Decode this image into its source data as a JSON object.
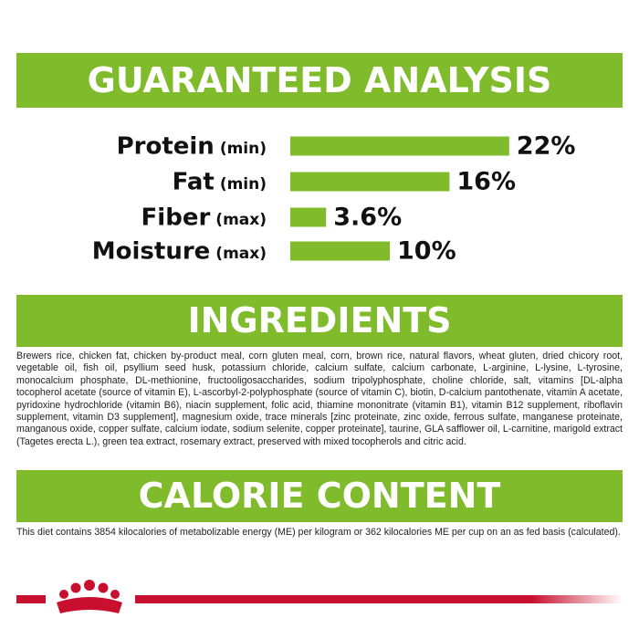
{
  "chart_data": {
    "type": "bar",
    "title": "GUARANTEED ANALYSIS",
    "categories": [
      "Protein",
      "Fat",
      "Fiber",
      "Moisture"
    ],
    "category_notes": [
      "(min)",
      "(min)",
      "(max)",
      "(max)"
    ],
    "values": [
      22,
      16,
      3.6,
      10
    ],
    "value_labels": [
      "22%",
      "16%",
      "3.6%",
      "10%"
    ],
    "color": "#7fbb2a"
  },
  "sections": {
    "ingredients": {
      "title": "INGREDIENTS",
      "text": "Brewers rice, chicken fat, chicken by-product meal, corn gluten meal, corn, brown rice, natural flavors, wheat gluten, dried chicory root, vegetable oil, fish oil, psyllium seed husk, potassium chloride, calcium sulfate, calcium carbonate, L-arginine, L-lysine, L-tyrosine, monocalcium phosphate, DL-methionine, fructooligosaccharides, sodium tripolyphosphate, choline chloride, salt, vitamins [DL-alpha tocopherol acetate (source of vitamin E), L-ascorbyl-2-polyphosphate (source of vitamin C), biotin, D-calcium pantothenate, vitamin A acetate, pyridoxine hydrochloride (vitamin B6), niacin supplement, folic acid, thiamine mononitrate (vitamin B1), vitamin B12 supplement, riboflavin supplement, vitamin D3 supplement], magnesium oxide, trace minerals [zinc proteinate, zinc oxide, ferrous sulfate, manganese proteinate, manganous oxide, copper sulfate, calcium iodate, sodium selenite, copper proteinate], taurine, GLA safflower oil, L-carnitine, marigold extract (Tagetes erecta L.), green tea extract, rosemary extract, preserved with mixed tocopherols and citric acid."
    },
    "calories": {
      "title": "CALORIE CONTENT",
      "text": "This diet contains 3854 kilocalories of metabolizable energy (ME) per kilogram or 362 kilocalories ME per cup on an as fed basis (calculated)."
    }
  }
}
